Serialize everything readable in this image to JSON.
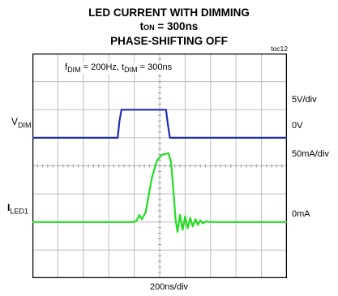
{
  "chart_data": {
    "type": "line",
    "title_line1": "LED CURRENT WITH DIMMING",
    "title_line2": {
      "main": "t",
      "sub": "ON",
      "rest": " = 300ns"
    },
    "title_line3": "PHASE-SHIFTING OFF",
    "figure_id": "toc12",
    "annotation": {
      "f": "f",
      "f_sub": "DIM",
      "f_val": " = 200Hz, ",
      "t": "t",
      "t_sub": "DIM",
      "t_val": " = 300ns"
    },
    "xlabel": "200ns/div",
    "x_divisions": 10,
    "y_divisions": 8,
    "grid": true,
    "channels": [
      {
        "label_main": "V",
        "label_sub": "DIM",
        "scale": "5V/div",
        "zero_label": "0V",
        "zero_div_from_top": 3,
        "units_per_div": 5,
        "color": "#1f2fb0",
        "points": [
          [
            0,
            0
          ],
          [
            3.35,
            0
          ],
          [
            3.42,
            0.6
          ],
          [
            3.5,
            1.0
          ],
          [
            5.25,
            1.0
          ],
          [
            5.32,
            0.5
          ],
          [
            5.4,
            0
          ],
          [
            10,
            0
          ]
        ]
      },
      {
        "label_main": "I",
        "label_sub": "LED1",
        "scale": "50mA/div",
        "zero_label": "0mA",
        "zero_div_from_top": 6,
        "units_per_div": 50,
        "color": "#22dd22",
        "points": [
          [
            0,
            0
          ],
          [
            4.0,
            0
          ],
          [
            4.1,
            0.05
          ],
          [
            4.2,
            0.25
          ],
          [
            4.3,
            0.1
          ],
          [
            4.45,
            0.35
          ],
          [
            4.7,
            1.6
          ],
          [
            4.9,
            2.2
          ],
          [
            5.1,
            2.4
          ],
          [
            5.35,
            2.45
          ],
          [
            5.45,
            2.1
          ],
          [
            5.55,
            1.0
          ],
          [
            5.62,
            0.1
          ],
          [
            5.7,
            -0.35
          ],
          [
            5.8,
            0.25
          ],
          [
            5.9,
            -0.28
          ],
          [
            6.0,
            0.2
          ],
          [
            6.1,
            -0.22
          ],
          [
            6.2,
            0.15
          ],
          [
            6.3,
            -0.16
          ],
          [
            6.4,
            0.1
          ],
          [
            6.5,
            -0.1
          ],
          [
            6.6,
            0.06
          ],
          [
            6.7,
            -0.05
          ],
          [
            6.8,
            0.02
          ],
          [
            7.0,
            0
          ],
          [
            10,
            0
          ]
        ]
      }
    ]
  }
}
